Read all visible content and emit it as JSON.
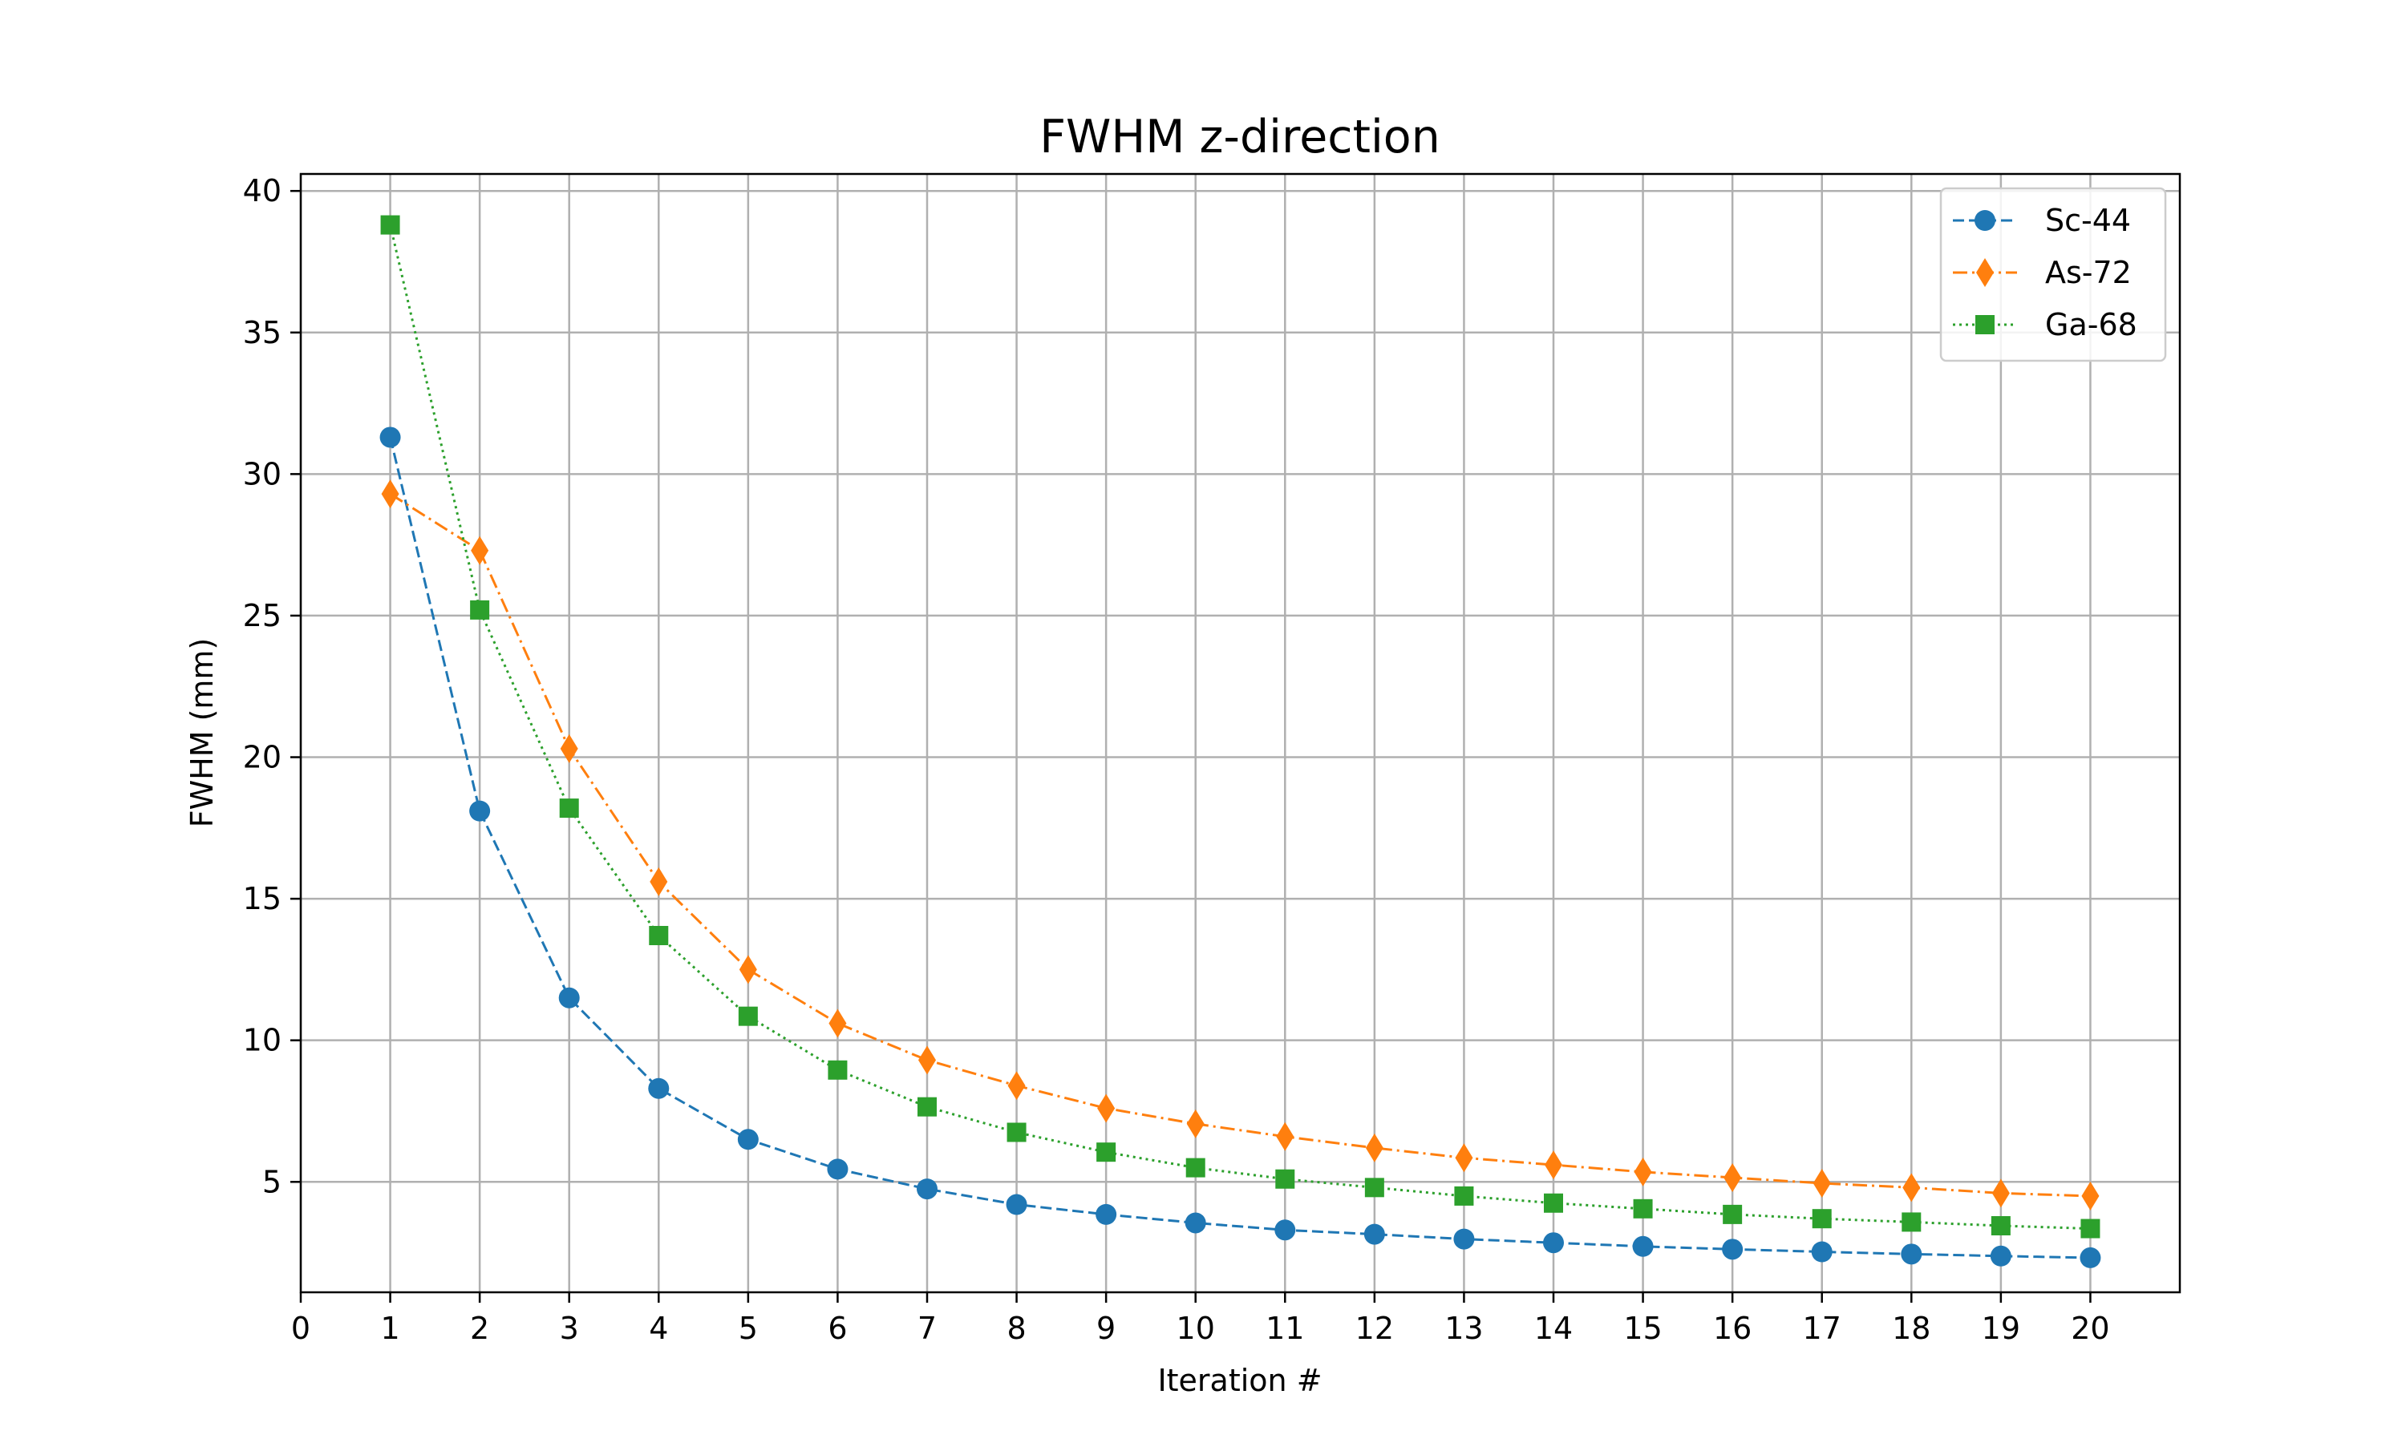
{
  "chart_data": {
    "type": "line",
    "title": "FWHM z-direction",
    "xlabel": "Iteration #",
    "ylabel": "FWHM (mm)",
    "xlim": [
      0,
      21
    ],
    "ylim": [
      1.1,
      40.6
    ],
    "xticks": [
      "0",
      "1",
      "2",
      "3",
      "4",
      "5",
      "6",
      "7",
      "8",
      "9",
      "10",
      "11",
      "12",
      "13",
      "14",
      "15",
      "16",
      "17",
      "18",
      "19",
      "20"
    ],
    "yticks": [
      "5",
      "10",
      "15",
      "20",
      "25",
      "30",
      "35",
      "40"
    ],
    "grid": true,
    "legend_position": "top-right",
    "x": [
      1,
      2,
      3,
      4,
      5,
      6,
      7,
      8,
      9,
      10,
      11,
      12,
      13,
      14,
      15,
      16,
      17,
      18,
      19,
      20
    ],
    "series": [
      {
        "name": "Sc-44",
        "color": "#1f77b4",
        "line_style": "dashed",
        "marker": "circle",
        "values": [
          31.3,
          18.1,
          11.5,
          8.3,
          6.5,
          5.45,
          4.75,
          4.2,
          3.85,
          3.55,
          3.3,
          3.15,
          2.98,
          2.85,
          2.72,
          2.62,
          2.53,
          2.45,
          2.38,
          2.32
        ]
      },
      {
        "name": "As-72",
        "color": "#ff7f0e",
        "line_style": "dashdot",
        "marker": "diamond",
        "values": [
          29.3,
          27.3,
          20.3,
          15.6,
          12.5,
          10.6,
          9.3,
          8.4,
          7.6,
          7.05,
          6.6,
          6.2,
          5.85,
          5.6,
          5.35,
          5.15,
          4.95,
          4.8,
          4.6,
          4.5
        ]
      },
      {
        "name": "Ga-68",
        "color": "#2ca02c",
        "line_style": "dotted",
        "marker": "square",
        "values": [
          38.8,
          25.2,
          18.2,
          13.7,
          10.85,
          8.95,
          7.65,
          6.75,
          6.05,
          5.5,
          5.1,
          4.8,
          4.5,
          4.25,
          4.05,
          3.85,
          3.7,
          3.58,
          3.45,
          3.35
        ]
      }
    ]
  }
}
